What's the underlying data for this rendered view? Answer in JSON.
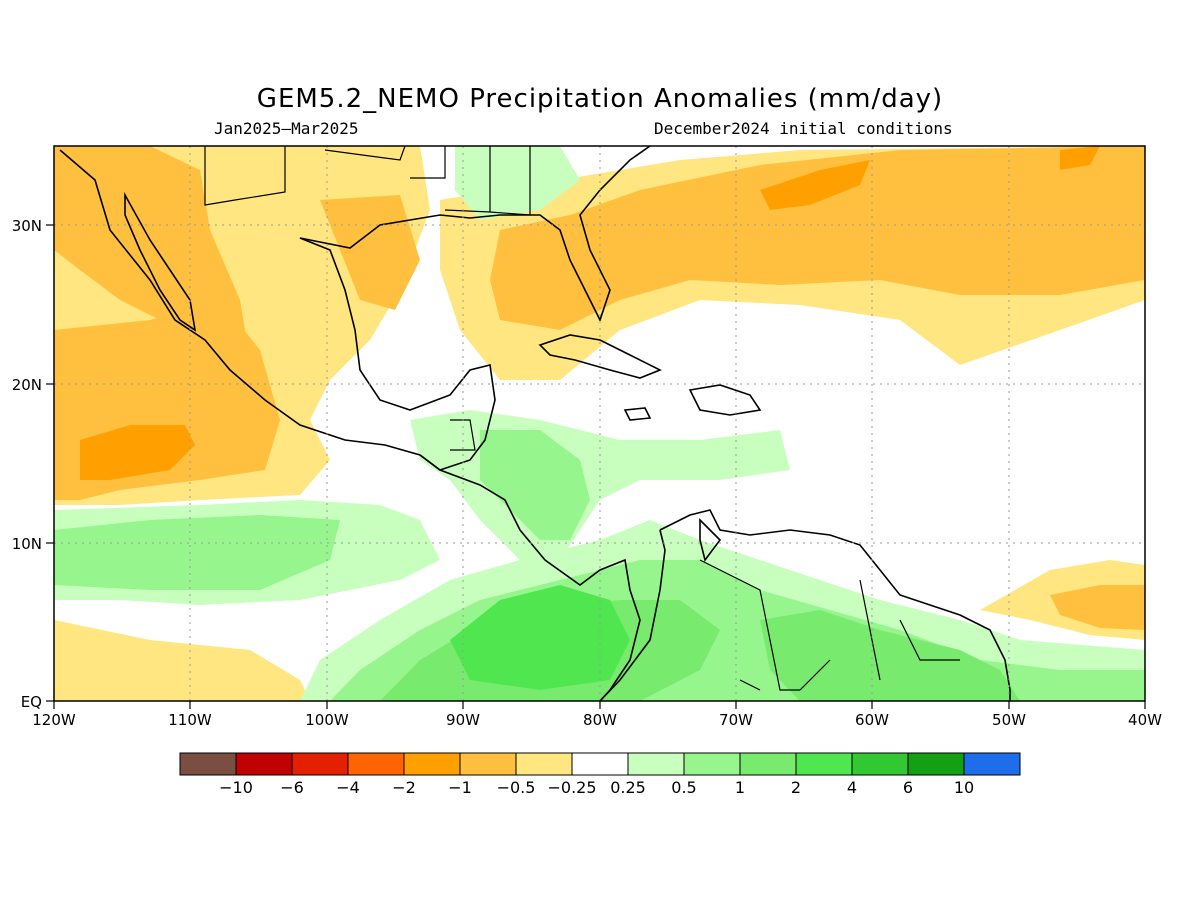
{
  "title": "GEM5.2_NEMO Precipitation Anomalies (mm/day)",
  "subtitle_left": "Jan2025–Mar2025",
  "subtitle_right": "December2024 initial conditions",
  "lat_labels": [
    "EQ",
    "10N",
    "20N",
    "30N"
  ],
  "lon_labels": [
    "120W",
    "110W",
    "100W",
    "90W",
    "80W",
    "70W",
    "60W",
    "50W",
    "40W"
  ],
  "colorbar": {
    "colors": [
      "#7a4f42",
      "#c10000",
      "#e42000",
      "#ff6400",
      "#ffa000",
      "#ffc040",
      "#ffe680",
      "#ffffff",
      "#c8ffbe",
      "#96f58c",
      "#78eb6e",
      "#50e650",
      "#32c832",
      "#14a014",
      "#1e6eeb"
    ],
    "labels": [
      "−10",
      "−6",
      "−4",
      "−2",
      "−1",
      "−0.5",
      "−0.25",
      "0.25",
      "0.5",
      "1",
      "2",
      "4",
      "6",
      "10"
    ]
  }
}
